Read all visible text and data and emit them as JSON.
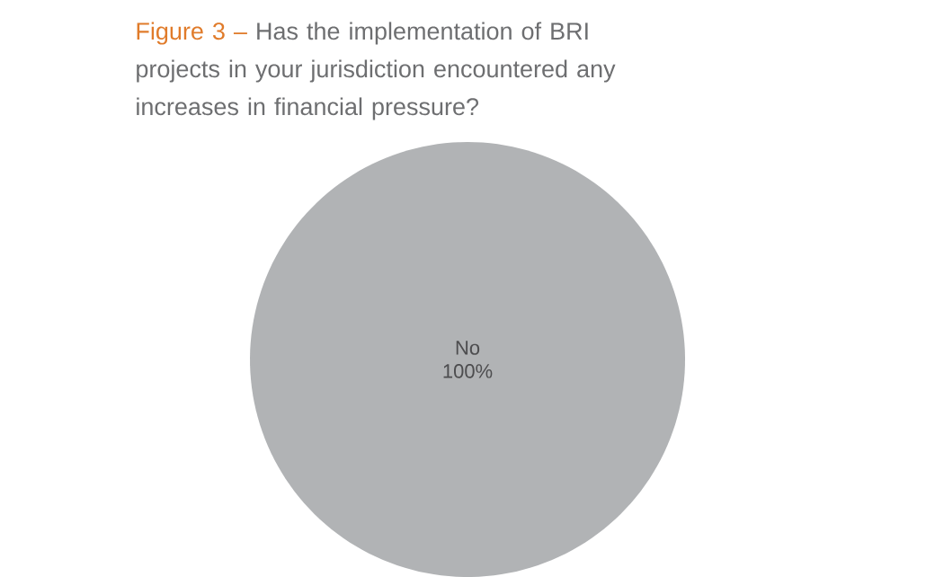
{
  "chart_data": {
    "type": "pie",
    "title": "Figure 3 –",
    "subtitle": "Has the implementation of BRI projects in your jurisdiction encountered any increases in financial pressure?",
    "categories": [
      "No"
    ],
    "values": [
      100
    ],
    "value_labels": [
      "100%"
    ],
    "colors": [
      "#b1b3b5"
    ]
  }
}
